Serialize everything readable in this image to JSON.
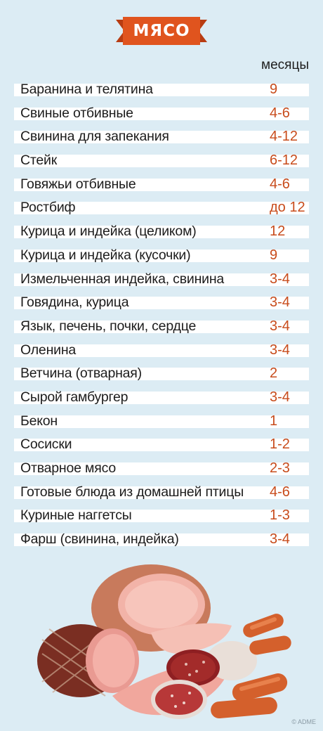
{
  "title": "МЯСО",
  "column_header": "месяцы",
  "rows": [
    {
      "name": "Баранина и телятина",
      "months": "9"
    },
    {
      "name": "Свиные отбивные",
      "months": "4-6"
    },
    {
      "name": "Свинина для запекания",
      "months": "4-12"
    },
    {
      "name": "Стейк",
      "months": "6-12"
    },
    {
      "name": "Говяжьи отбивные",
      "months": "4-6"
    },
    {
      "name": "Ростбиф",
      "months": "до 12"
    },
    {
      "name": "Курица и индейка (целиком)",
      "months": "12"
    },
    {
      "name": "Курица и индейка (кусочки)",
      "months": "9"
    },
    {
      "name": "Измельченная индейка, свинина",
      "months": "3-4"
    },
    {
      "name": "Говядина, курица",
      "months": "3-4"
    },
    {
      "name": "Язык, печень, почки, сердце",
      "months": "3-4"
    },
    {
      "name": "Оленина",
      "months": "3-4"
    },
    {
      "name": "Ветчина (отварная)",
      "months": "2"
    },
    {
      "name": "Сырой гамбургер",
      "months": "3-4"
    },
    {
      "name": "Бекон",
      "months": "1"
    },
    {
      "name": "Сосиски",
      "months": "1-2"
    },
    {
      "name": "Отварное мясо",
      "months": "2-3"
    },
    {
      "name": "Готовые блюда из домашней птицы",
      "months": "4-6"
    },
    {
      "name": "Куриные наггетсы",
      "months": "1-3"
    },
    {
      "name": "Фарш (свинина, индейка)",
      "months": "3-4"
    }
  ],
  "credit": "© ADME",
  "colors": {
    "background": "#dcecf4",
    "banner": "#e0541e",
    "value": "#c84c1c",
    "row_bar": "#ffffff"
  }
}
